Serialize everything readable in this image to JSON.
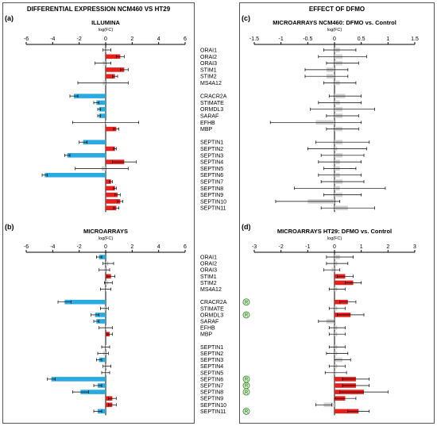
{
  "left_section": {
    "title": "DIFFERENTIAL EXPRESSION NCM460 VS HT29"
  },
  "right_section": {
    "title": "EFFECT OF DFMO"
  },
  "genes": [
    "ORAI1",
    "ORAI2",
    "ORAI3",
    "STIM1",
    "STIM2",
    "MS4A12",
    "",
    "CRACR2A",
    "STIMATE",
    "ORMDL3",
    "SARAF",
    "EFHB",
    "MBP",
    "",
    "SEPTIN1",
    "SEPTIN2",
    "SEPTIN3",
    "SEPTIN4",
    "SEPTIN5",
    "SEPTIN6",
    "SEPTIN7",
    "SEPTIN8",
    "SEPTIN9",
    "SEPTIN10",
    "SEPTIN11"
  ],
  "colors": {
    "up": "#e8201c",
    "down": "#29abe2",
    "ns": "#d3d3d3",
    "r_badge": "#3a8f2e"
  },
  "r_badge_label": "R",
  "chart_data": [
    {
      "panel": "(a)",
      "type": "bar",
      "orientation": "horizontal",
      "title": "ILLUMINA",
      "xlabel": "log(FC)",
      "xlim": [
        -6,
        6
      ],
      "xticks": [
        -6,
        -4,
        -2,
        0,
        2,
        4,
        6
      ],
      "categories": [
        "ORAI1",
        "ORAI2",
        "ORAI3",
        "STIM1",
        "STIM2",
        "MS4A12",
        "CRACR2A",
        "STIMATE",
        "ORMDL3",
        "SARAF",
        "EFHB",
        "MBP",
        "SEPTIN1",
        "SEPTIN2",
        "SEPTIN3",
        "SEPTIN4",
        "SEPTIN5",
        "SEPTIN6",
        "SEPTIN7",
        "SEPTIN8",
        "SEPTIN9",
        "SEPTIN10",
        "SEPTIN11"
      ],
      "values": [
        0.1,
        1.1,
        -0.2,
        1.4,
        0.7,
        -0.2,
        -2.4,
        -0.7,
        -0.5,
        -0.5,
        0.0,
        0.8,
        -1.7,
        0.7,
        -2.9,
        1.4,
        -0.3,
        -4.6,
        0.4,
        0.7,
        0.9,
        1.1,
        0.8
      ],
      "errors": [
        0.3,
        0.3,
        0.6,
        0.3,
        0.2,
        1.9,
        0.3,
        0.2,
        0.1,
        0.1,
        2.5,
        0.2,
        0.3,
        0.1,
        0.2,
        0.9,
        2.0,
        0.2,
        0.1,
        0.1,
        0.2,
        0.2,
        0.2
      ],
      "status": [
        "ns",
        "up",
        "ns",
        "up",
        "up",
        "ns",
        "down",
        "down",
        "down",
        "down",
        "ns",
        "up",
        "down",
        "up",
        "down",
        "up",
        "ns",
        "down",
        "up",
        "up",
        "up",
        "up",
        "up"
      ]
    },
    {
      "panel": "(b)",
      "type": "bar",
      "orientation": "horizontal",
      "title": "MICROARRAYS",
      "xlabel": "log(FC)",
      "xlim": [
        -6,
        6
      ],
      "xticks": [
        -6,
        -4,
        -2,
        0,
        2,
        4,
        6
      ],
      "categories": [
        "ORAI1",
        "ORAI2",
        "ORAI3",
        "STIM1",
        "STIM2",
        "MS4A12",
        "CRACR2A",
        "STIMATE",
        "ORMDL3",
        "SARAF",
        "EFHB",
        "MBP",
        "SEPTIN1",
        "SEPTIN2",
        "SEPTIN3",
        "SEPTIN4",
        "SEPTIN5",
        "SEPTIN6",
        "SEPTIN7",
        "SEPTIN8",
        "SEPTIN9",
        "SEPTIN10",
        "SEPTIN11"
      ],
      "values": [
        -0.5,
        0.2,
        -0.1,
        0.4,
        0.2,
        0.0,
        -3.1,
        -0.1,
        -0.8,
        -0.7,
        0.0,
        0.3,
        0.0,
        -0.2,
        -0.5,
        0.1,
        0.0,
        -4.1,
        -0.6,
        -1.9,
        0.5,
        0.5,
        -0.6
      ],
      "errors": [
        0.2,
        0.4,
        0.4,
        0.3,
        0.3,
        0.4,
        0.5,
        0.3,
        0.3,
        0.2,
        0.5,
        0.2,
        0.3,
        0.4,
        0.2,
        0.3,
        0.3,
        0.3,
        0.3,
        0.6,
        0.3,
        0.3,
        0.3
      ],
      "status": [
        "down",
        "ns",
        "ns",
        "up",
        "ns",
        "ns",
        "down",
        "ns",
        "down",
        "down",
        "ns",
        "up",
        "ns",
        "ns",
        "down",
        "ns",
        "ns",
        "down",
        "down",
        "down",
        "up",
        "up",
        "down"
      ]
    },
    {
      "panel": "(c)",
      "type": "bar",
      "orientation": "horizontal",
      "title": "MICROARRAYS NCM460: DFMO vs. Control",
      "xlabel": "log(FC)",
      "xlim": [
        -1.5,
        1.5
      ],
      "xticks": [
        -1.5,
        -1,
        -0.5,
        0,
        0.5,
        1,
        1.5
      ],
      "xtick_labels": [
        "-1.5",
        "-1",
        "-0.5",
        "0",
        "0.5",
        "1",
        "1.5"
      ],
      "categories": [
        "ORAI1",
        "ORAI2",
        "ORAI3",
        "STIM1",
        "STIM2",
        "MS4A12",
        "CRACR2A",
        "STIMATE",
        "ORMDL3",
        "SARAF",
        "EFHB",
        "MBP",
        "SEPTIN1",
        "SEPTIN2",
        "SEPTIN3",
        "SEPTIN4",
        "SEPTIN5",
        "SEPTIN6",
        "SEPTIN7",
        "SEPTIN8",
        "SEPTIN9",
        "SEPTIN10",
        "SEPTIN11"
      ],
      "values": [
        0.1,
        0.15,
        0.15,
        -0.15,
        -0.15,
        0.1,
        0.2,
        0.1,
        0.15,
        0.15,
        -0.35,
        0.15,
        0.15,
        0.05,
        0.15,
        0.1,
        0.1,
        0.1,
        0.15,
        0.1,
        0.15,
        -0.5,
        0.25
      ],
      "errors": [
        0.3,
        0.45,
        0.3,
        0.4,
        0.4,
        0.3,
        0.3,
        0.4,
        0.6,
        0.3,
        0.85,
        0.3,
        0.5,
        0.55,
        0.4,
        0.4,
        0.3,
        0.4,
        0.4,
        0.85,
        0.35,
        0.6,
        0.5
      ],
      "status": [
        "ns",
        "ns",
        "ns",
        "ns",
        "ns",
        "ns",
        "ns",
        "ns",
        "ns",
        "ns",
        "ns",
        "ns",
        "ns",
        "ns",
        "ns",
        "ns",
        "ns",
        "ns",
        "ns",
        "ns",
        "ns",
        "ns",
        "ns"
      ]
    },
    {
      "panel": "(d)",
      "type": "bar",
      "orientation": "horizontal",
      "title": "MICROARRAYS HT29: DFMO vs. Control",
      "xlabel": "log(FC)",
      "xlim": [
        -3,
        3
      ],
      "xticks": [
        -3,
        -2,
        -1,
        0,
        1,
        2,
        3
      ],
      "categories": [
        "ORAI1",
        "ORAI2",
        "ORAI3",
        "STIM1",
        "STIM2",
        "MS4A12",
        "CRACR2A",
        "STIMATE",
        "ORMDL3",
        "SARAF",
        "EFHB",
        "MBP",
        "SEPTIN1",
        "SEPTIN2",
        "SEPTIN3",
        "SEPTIN4",
        "SEPTIN5",
        "SEPTIN6",
        "SEPTIN7",
        "SEPTIN8",
        "SEPTIN9",
        "SEPTIN10",
        "SEPTIN11"
      ],
      "values": [
        0.2,
        0.1,
        -0.1,
        0.4,
        0.7,
        0.1,
        0.5,
        0.1,
        0.6,
        -0.3,
        0.1,
        0.1,
        0.1,
        0.1,
        0.3,
        0.1,
        0.05,
        0.8,
        0.8,
        1.1,
        0.4,
        -0.4,
        0.9
      ],
      "errors": [
        0.5,
        0.4,
        0.3,
        0.3,
        0.3,
        0.3,
        0.3,
        0.3,
        0.5,
        0.3,
        0.3,
        0.3,
        0.3,
        0.4,
        0.3,
        0.3,
        0.4,
        0.5,
        0.5,
        0.9,
        0.4,
        0.3,
        0.4
      ],
      "status": [
        "ns",
        "ns",
        "ns",
        "up",
        "up",
        "ns",
        "up",
        "ns",
        "up",
        "ns",
        "ns",
        "ns",
        "ns",
        "ns",
        "ns",
        "ns",
        "ns",
        "up",
        "up",
        "up",
        "up",
        "ns",
        "up"
      ],
      "r_marked": [
        "CRACR2A",
        "ORMDL3",
        "SEPTIN6",
        "SEPTIN7",
        "SEPTIN8",
        "SEPTIN11"
      ]
    }
  ]
}
